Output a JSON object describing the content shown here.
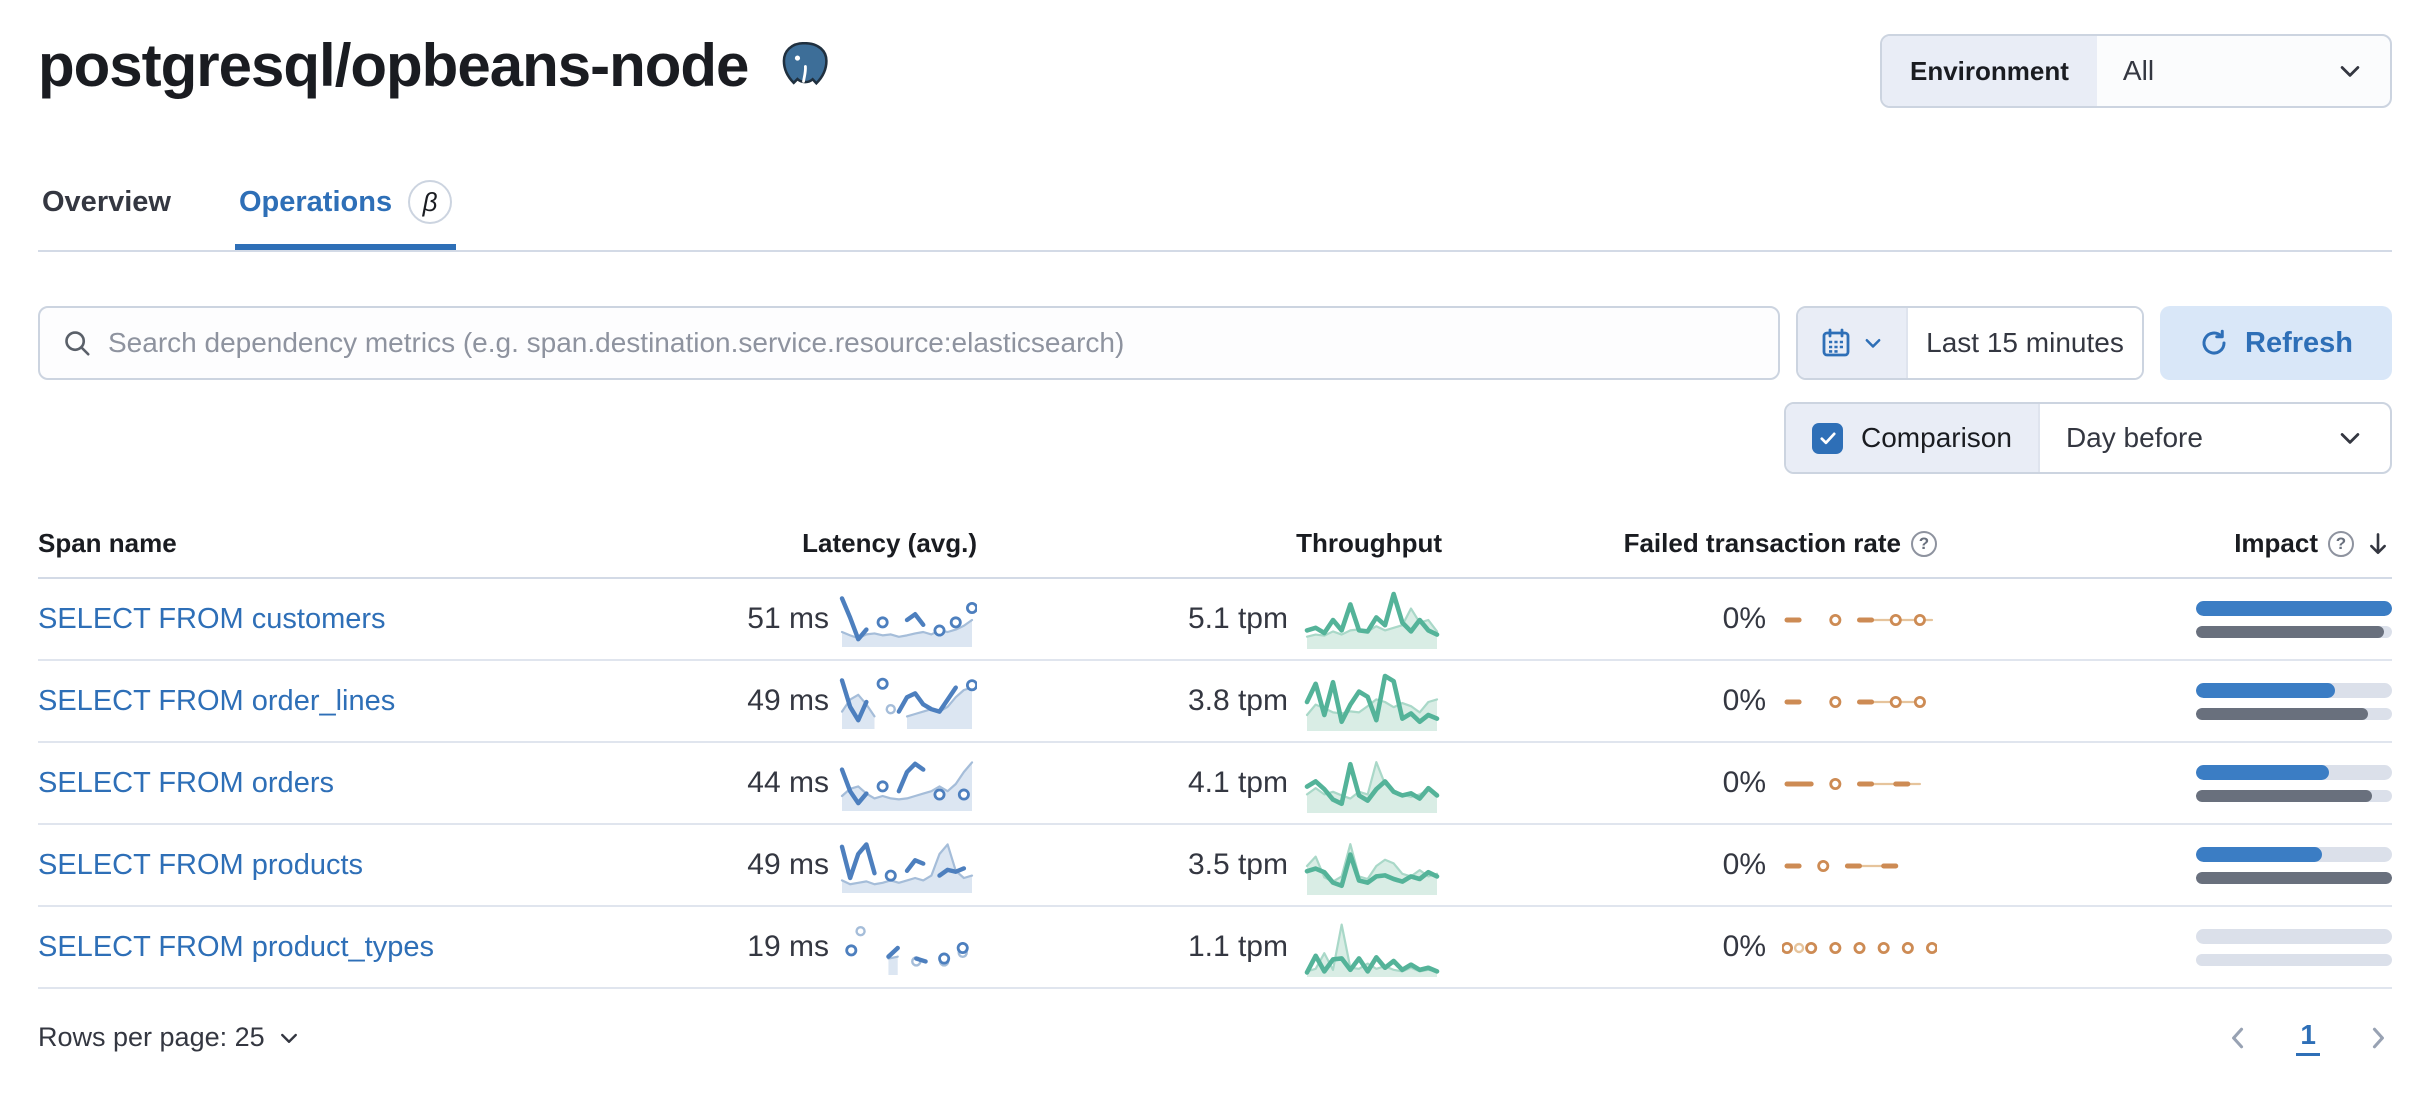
{
  "page": {
    "title": "postgresql/opbeans-node"
  },
  "environment": {
    "label": "Environment",
    "value": "All"
  },
  "tabs": [
    {
      "label": "Overview",
      "active": false
    },
    {
      "label": "Operations",
      "active": true,
      "badge": "β"
    }
  ],
  "search": {
    "placeholder": "Search dependency metrics (e.g. span.destination.service.resource:elasticsearch)"
  },
  "time": {
    "range_label": "Last 15 minutes",
    "refresh_label": "Refresh"
  },
  "comparison": {
    "label": "Comparison",
    "checked": true,
    "value": "Day before"
  },
  "table": {
    "columns": [
      "Span name",
      "Latency (avg.)",
      "Throughput",
      "Failed transaction rate",
      "Impact"
    ],
    "rows": [
      {
        "span_name": "SELECT FROM customers",
        "latency": "51 ms",
        "throughput": "5.1 tpm",
        "failed_rate": "0%",
        "impact": {
          "current": 1.0,
          "previous": 0.96
        },
        "latency_spark": {
          "current": [
            0.95,
            0.55,
            0.1,
            0.3,
            null,
            0.45,
            null,
            null,
            0.5,
            0.62,
            0.4,
            null,
            0.28,
            null,
            0.45,
            null,
            0.75
          ],
          "previous": [
            0.25,
            0.18,
            0.12,
            0.2,
            0.22,
            0.18,
            0.2,
            0.15,
            0.18,
            0.22,
            0.25,
            0.2,
            0.28,
            0.25,
            0.3,
            0.38,
            0.5
          ]
        },
        "throughput_spark": {
          "current": [
            0.3,
            0.35,
            0.25,
            0.5,
            0.3,
            0.8,
            0.3,
            0.28,
            0.55,
            0.4,
            1.0,
            0.45,
            0.28,
            0.5,
            0.3,
            0.22
          ],
          "previous": [
            0.18,
            0.22,
            0.2,
            0.28,
            0.22,
            0.3,
            0.32,
            0.28,
            0.38,
            0.3,
            0.35,
            0.4,
            0.72,
            0.45,
            0.5,
            0.28
          ]
        },
        "failed_spark": {
          "current": [
            0.5,
            0.5,
            null,
            null,
            0.5,
            null,
            0.5,
            0.5,
            null,
            0.5,
            null,
            0.5,
            null
          ],
          "previous": [
            null,
            null,
            null,
            null,
            null,
            null,
            null,
            0.5,
            0.5,
            0.5,
            0.5,
            0.5,
            0.5
          ]
        }
      },
      {
        "span_name": "SELECT FROM order_lines",
        "latency": "49 ms",
        "throughput": "3.8 tpm",
        "failed_rate": "0%",
        "impact": {
          "current": 0.71,
          "previous": 0.88
        },
        "latency_spark": {
          "current": [
            0.95,
            0.4,
            0.12,
            0.5,
            null,
            0.88,
            null,
            0.3,
            0.6,
            0.68,
            0.45,
            0.35,
            0.3,
            0.55,
            0.8,
            null,
            0.85
          ],
          "previous": [
            0.3,
            0.55,
            0.65,
            0.45,
            0.2,
            null,
            0.35,
            null,
            0.2,
            0.25,
            0.3,
            0.35,
            0.3,
            0.4,
            0.6,
            0.75,
            0.8
          ]
        },
        "throughput_spark": {
          "current": [
            0.5,
            0.85,
            0.25,
            0.88,
            0.12,
            0.45,
            0.7,
            0.6,
            0.15,
            1.0,
            0.9,
            0.18,
            0.28,
            0.12,
            0.25,
            0.18
          ],
          "previous": [
            0.25,
            0.45,
            0.38,
            0.3,
            0.28,
            0.32,
            0.3,
            0.42,
            0.55,
            0.5,
            0.4,
            0.48,
            0.42,
            0.3,
            0.5,
            0.55
          ]
        },
        "failed_spark": {
          "current": [
            0.5,
            0.5,
            null,
            null,
            0.5,
            null,
            0.5,
            0.5,
            null,
            0.5,
            null,
            0.5,
            null
          ],
          "previous": [
            null,
            null,
            null,
            null,
            null,
            null,
            null,
            0.5,
            0.5,
            0.5,
            0.5,
            0.5,
            null
          ]
        }
      },
      {
        "span_name": "SELECT FROM orders",
        "latency": "44 ms",
        "throughput": "4.1 tpm",
        "failed_rate": "0%",
        "impact": {
          "current": 0.68,
          "previous": 0.9
        },
        "latency_spark": {
          "current": [
            0.8,
            0.35,
            0.1,
            0.3,
            null,
            0.45,
            null,
            0.35,
            0.75,
            0.92,
            0.8,
            null,
            0.28,
            null,
            null,
            0.28,
            null
          ],
          "previous": [
            0.25,
            0.4,
            0.45,
            0.3,
            0.2,
            0.25,
            0.2,
            0.18,
            0.2,
            0.25,
            0.3,
            0.35,
            0.45,
            0.35,
            0.5,
            0.75,
            0.95
          ]
        },
        "throughput_spark": {
          "current": [
            0.45,
            0.55,
            0.4,
            0.2,
            0.12,
            0.88,
            0.28,
            0.18,
            0.4,
            0.55,
            0.35,
            0.28,
            0.32,
            0.22,
            0.42,
            0.28
          ],
          "previous": [
            0.3,
            0.42,
            0.3,
            0.35,
            0.28,
            0.22,
            0.35,
            0.3,
            0.92,
            0.5,
            0.35,
            0.3,
            0.25,
            0.3,
            0.38,
            0.3
          ]
        },
        "failed_spark": {
          "current": [
            0.5,
            0.5,
            0.5,
            null,
            0.5,
            null,
            0.5,
            0.5,
            null,
            0.5,
            0.5,
            null,
            null
          ],
          "previous": [
            null,
            null,
            null,
            null,
            null,
            null,
            0.5,
            0.5,
            0.5,
            0.5,
            0.5,
            0.5,
            null
          ]
        }
      },
      {
        "span_name": "SELECT FROM products",
        "latency": "49 ms",
        "throughput": "3.5 tpm",
        "failed_rate": "0%",
        "impact": {
          "current": 0.645,
          "previous": 1.0
        },
        "latency_spark": {
          "current": [
            0.9,
            0.25,
            0.75,
            0.95,
            0.35,
            null,
            0.3,
            null,
            0.4,
            0.62,
            0.55,
            null,
            0.3,
            0.42,
            0.38,
            0.45,
            null
          ],
          "previous": [
            0.2,
            0.12,
            0.15,
            0.18,
            0.12,
            0.15,
            0.2,
            0.15,
            0.2,
            0.25,
            0.2,
            0.3,
            0.75,
            0.95,
            0.4,
            0.25,
            0.3
          ]
        },
        "throughput_spark": {
          "current": [
            0.4,
            0.45,
            0.38,
            0.18,
            0.12,
            0.72,
            0.22,
            0.18,
            0.3,
            0.32,
            0.25,
            0.2,
            0.3,
            0.25,
            0.38,
            0.3
          ],
          "previous": [
            0.5,
            0.68,
            0.28,
            0.2,
            0.3,
            0.92,
            0.3,
            0.25,
            0.5,
            0.62,
            0.55,
            0.35,
            0.3,
            0.42,
            0.3,
            0.35
          ]
        },
        "failed_spark": {
          "current": [
            0.5,
            0.5,
            null,
            0.5,
            null,
            0.5,
            0.5,
            null,
            0.5,
            0.5,
            null,
            null,
            null
          ],
          "previous": [
            null,
            null,
            null,
            null,
            null,
            0.5,
            0.5,
            0.5,
            0.5,
            0.5,
            null,
            null,
            null
          ]
        }
      },
      {
        "span_name": "SELECT FROM product_types",
        "latency": "19 ms",
        "throughput": "1.1 tpm",
        "failed_rate": "0%",
        "impact": {
          "current": 0.0,
          "previous": 0.0
        },
        "latency_spark": {
          "current": [
            null,
            0.45,
            null,
            null,
            null,
            0.32,
            0.5,
            null,
            0.28,
            0.22,
            null,
            0.28,
            null,
            0.5,
            null
          ],
          "previous": [
            null,
            null,
            0.85,
            null,
            null,
            0.28,
            0.32,
            null,
            0.22,
            null,
            null,
            0.22,
            null,
            0.4,
            null
          ]
        },
        "throughput_spark": {
          "current": [
            0.03,
            0.35,
            0.05,
            0.28,
            0.3,
            0.08,
            0.3,
            0.05,
            0.32,
            0.12,
            0.25,
            0.08,
            0.18,
            0.08,
            0.12,
            0.05
          ],
          "previous": [
            0.05,
            0.1,
            0.4,
            0.08,
            0.95,
            0.12,
            0.1,
            0.2,
            0.1,
            0.15,
            0.08,
            0.05,
            0.12,
            0.05,
            0.08,
            0.05
          ]
        },
        "failed_spark": {
          "current": [
            0.5,
            null,
            0.5,
            null,
            0.5,
            null,
            0.5,
            null,
            0.5,
            null,
            0.5,
            null,
            0.5
          ],
          "previous": [
            null,
            0.5,
            null,
            null,
            null,
            null,
            null,
            null,
            null,
            null,
            null,
            null,
            null
          ]
        }
      }
    ]
  },
  "pagination": {
    "rows_per_page_label": "Rows per page: 25",
    "current_page": "1"
  },
  "colors": {
    "accent": "#2e6fb7",
    "latency_line": "#4d7fbe",
    "latency_prev_line": "#a5bdd9",
    "latency_prev_fill": "#dce6f2",
    "throughput_line": "#54b399",
    "throughput_prev_line": "#a9d8c8",
    "throughput_prev_fill": "#d9ede5",
    "failed_line": "#cd8b54",
    "failed_prev_line": "#e6c49c",
    "impact_bar": "#3b7dc4",
    "impact_prev_bar": "#69707d",
    "impact_track": "#dbe0ea"
  }
}
